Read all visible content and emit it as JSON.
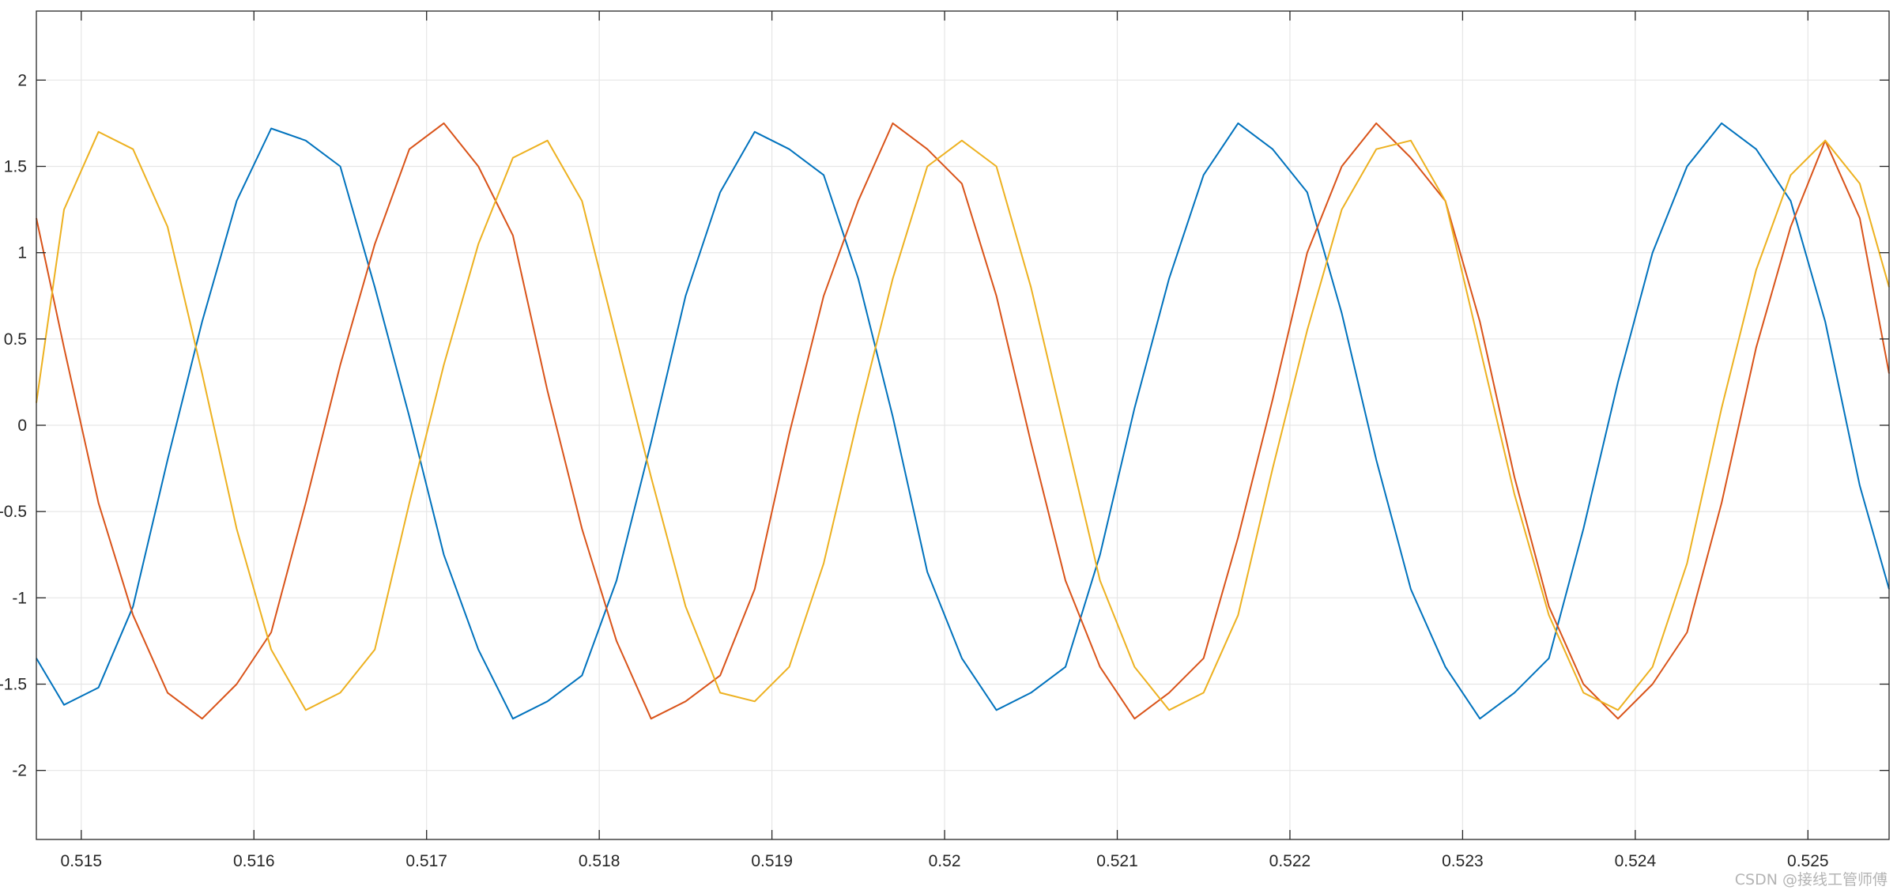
{
  "chart_data": {
    "type": "line",
    "title": "",
    "xlabel": "",
    "ylabel": "",
    "xlim": [
      0.51474,
      0.52547
    ],
    "ylim": [
      -2.4,
      2.4
    ],
    "x_ticks": [
      0.515,
      0.516,
      0.517,
      0.518,
      0.519,
      0.52,
      0.521,
      0.522,
      0.523,
      0.524,
      0.525
    ],
    "x_tick_labels": [
      "0.515",
      "0.516",
      "0.517",
      "0.518",
      "0.519",
      "0.52",
      "0.521",
      "0.522",
      "0.523",
      "0.524",
      "0.525"
    ],
    "y_ticks": [
      2,
      1.5,
      1,
      0.5,
      0,
      -0.5,
      -1,
      -1.5,
      -2
    ],
    "y_tick_labels": [
      "2",
      "1.5",
      "1",
      "0.5",
      "0",
      "-0.5",
      "-1",
      "-1.5",
      "-2"
    ],
    "grid": true,
    "legend": "none",
    "series": [
      {
        "color": "#0072BD",
        "x": [
          0.51474,
          0.5149,
          0.5151,
          0.5153,
          0.5155,
          0.5157,
          0.5159,
          0.5161,
          0.5163,
          0.5165,
          0.5167,
          0.5169,
          0.5171,
          0.5173,
          0.5175,
          0.5177,
          0.5179,
          0.5181,
          0.5183,
          0.5185,
          0.5187,
          0.5189,
          0.5191,
          0.5193,
          0.5195,
          0.5197,
          0.5199,
          0.5201,
          0.5203,
          0.5205,
          0.5207,
          0.5209,
          0.5211,
          0.5213,
          0.5215,
          0.5217,
          0.5219,
          0.5221,
          0.5223,
          0.5225,
          0.5227,
          0.5229,
          0.5231,
          0.5233,
          0.5235,
          0.5237,
          0.5239,
          0.5241,
          0.5243,
          0.5245,
          0.5247,
          0.5249,
          0.5251,
          0.5253,
          0.52547
        ],
        "y": [
          -1.35,
          -1.62,
          -1.52,
          -1.05,
          -0.2,
          0.6,
          1.3,
          1.72,
          1.65,
          1.5,
          0.8,
          0.05,
          -0.75,
          -1.3,
          -1.7,
          -1.6,
          -1.45,
          -0.9,
          -0.1,
          0.75,
          1.35,
          1.7,
          1.6,
          1.45,
          0.85,
          0.05,
          -0.85,
          -1.35,
          -1.65,
          -1.55,
          -1.4,
          -0.75,
          0.1,
          0.85,
          1.45,
          1.75,
          1.6,
          1.35,
          0.65,
          -0.2,
          -0.95,
          -1.4,
          -1.7,
          -1.55,
          -1.35,
          -0.6,
          0.25,
          1.0,
          1.5,
          1.75,
          1.6,
          1.3,
          0.6,
          -0.35,
          -0.95
        ]
      },
      {
        "color": "#D95319",
        "x": [
          0.51474,
          0.5149,
          0.5151,
          0.5153,
          0.5155,
          0.5157,
          0.5159,
          0.5161,
          0.5163,
          0.5165,
          0.5167,
          0.5169,
          0.5171,
          0.5173,
          0.5175,
          0.5177,
          0.5179,
          0.5181,
          0.5183,
          0.5185,
          0.5187,
          0.5189,
          0.5191,
          0.5193,
          0.5195,
          0.5197,
          0.5199,
          0.5201,
          0.5203,
          0.5205,
          0.5207,
          0.5209,
          0.5211,
          0.5213,
          0.5215,
          0.5217,
          0.5219,
          0.5221,
          0.5223,
          0.5225,
          0.5227,
          0.5229,
          0.5231,
          0.5233,
          0.5235,
          0.5237,
          0.5239,
          0.5241,
          0.5243,
          0.5245,
          0.5247,
          0.5249,
          0.5251,
          0.5253,
          0.52547
        ],
        "y": [
          1.2,
          0.45,
          -0.45,
          -1.1,
          -1.55,
          -1.7,
          -1.5,
          -1.2,
          -0.45,
          0.35,
          1.05,
          1.6,
          1.75,
          1.5,
          1.1,
          0.2,
          -0.6,
          -1.25,
          -1.7,
          -1.6,
          -1.45,
          -0.95,
          -0.05,
          0.75,
          1.3,
          1.75,
          1.6,
          1.4,
          0.75,
          -0.1,
          -0.9,
          -1.4,
          -1.7,
          -1.55,
          -1.35,
          -0.65,
          0.15,
          1.0,
          1.5,
          1.75,
          1.55,
          1.3,
          0.6,
          -0.3,
          -1.05,
          -1.5,
          -1.7,
          -1.5,
          -1.2,
          -0.45,
          0.45,
          1.15,
          1.65,
          1.2,
          0.3
        ]
      },
      {
        "color": "#EDB120",
        "x": [
          0.51474,
          0.5149,
          0.5151,
          0.5153,
          0.5155,
          0.5157,
          0.5159,
          0.5161,
          0.5163,
          0.5165,
          0.5167,
          0.5169,
          0.5171,
          0.5173,
          0.5175,
          0.5177,
          0.5179,
          0.5181,
          0.5183,
          0.5185,
          0.5187,
          0.5189,
          0.5191,
          0.5193,
          0.5195,
          0.5197,
          0.5199,
          0.5201,
          0.5203,
          0.5205,
          0.5207,
          0.5209,
          0.5211,
          0.5213,
          0.5215,
          0.5217,
          0.5219,
          0.5221,
          0.5223,
          0.5225,
          0.5227,
          0.5229,
          0.5231,
          0.5233,
          0.5235,
          0.5237,
          0.5239,
          0.5241,
          0.5243,
          0.5245,
          0.5247,
          0.5249,
          0.5251,
          0.5253,
          0.52547
        ],
        "y": [
          0.13,
          1.25,
          1.7,
          1.6,
          1.15,
          0.3,
          -0.6,
          -1.3,
          -1.65,
          -1.55,
          -1.3,
          -0.45,
          0.35,
          1.05,
          1.55,
          1.65,
          1.3,
          0.5,
          -0.3,
          -1.05,
          -1.55,
          -1.6,
          -1.4,
          -0.8,
          0.05,
          0.85,
          1.5,
          1.65,
          1.5,
          0.8,
          -0.05,
          -0.9,
          -1.4,
          -1.65,
          -1.55,
          -1.1,
          -0.25,
          0.55,
          1.25,
          1.6,
          1.65,
          1.3,
          0.45,
          -0.4,
          -1.1,
          -1.55,
          -1.65,
          -1.4,
          -0.8,
          0.1,
          0.9,
          1.45,
          1.65,
          1.4,
          0.8
        ]
      }
    ]
  },
  "watermark": "CSDN @接线工管师傅"
}
